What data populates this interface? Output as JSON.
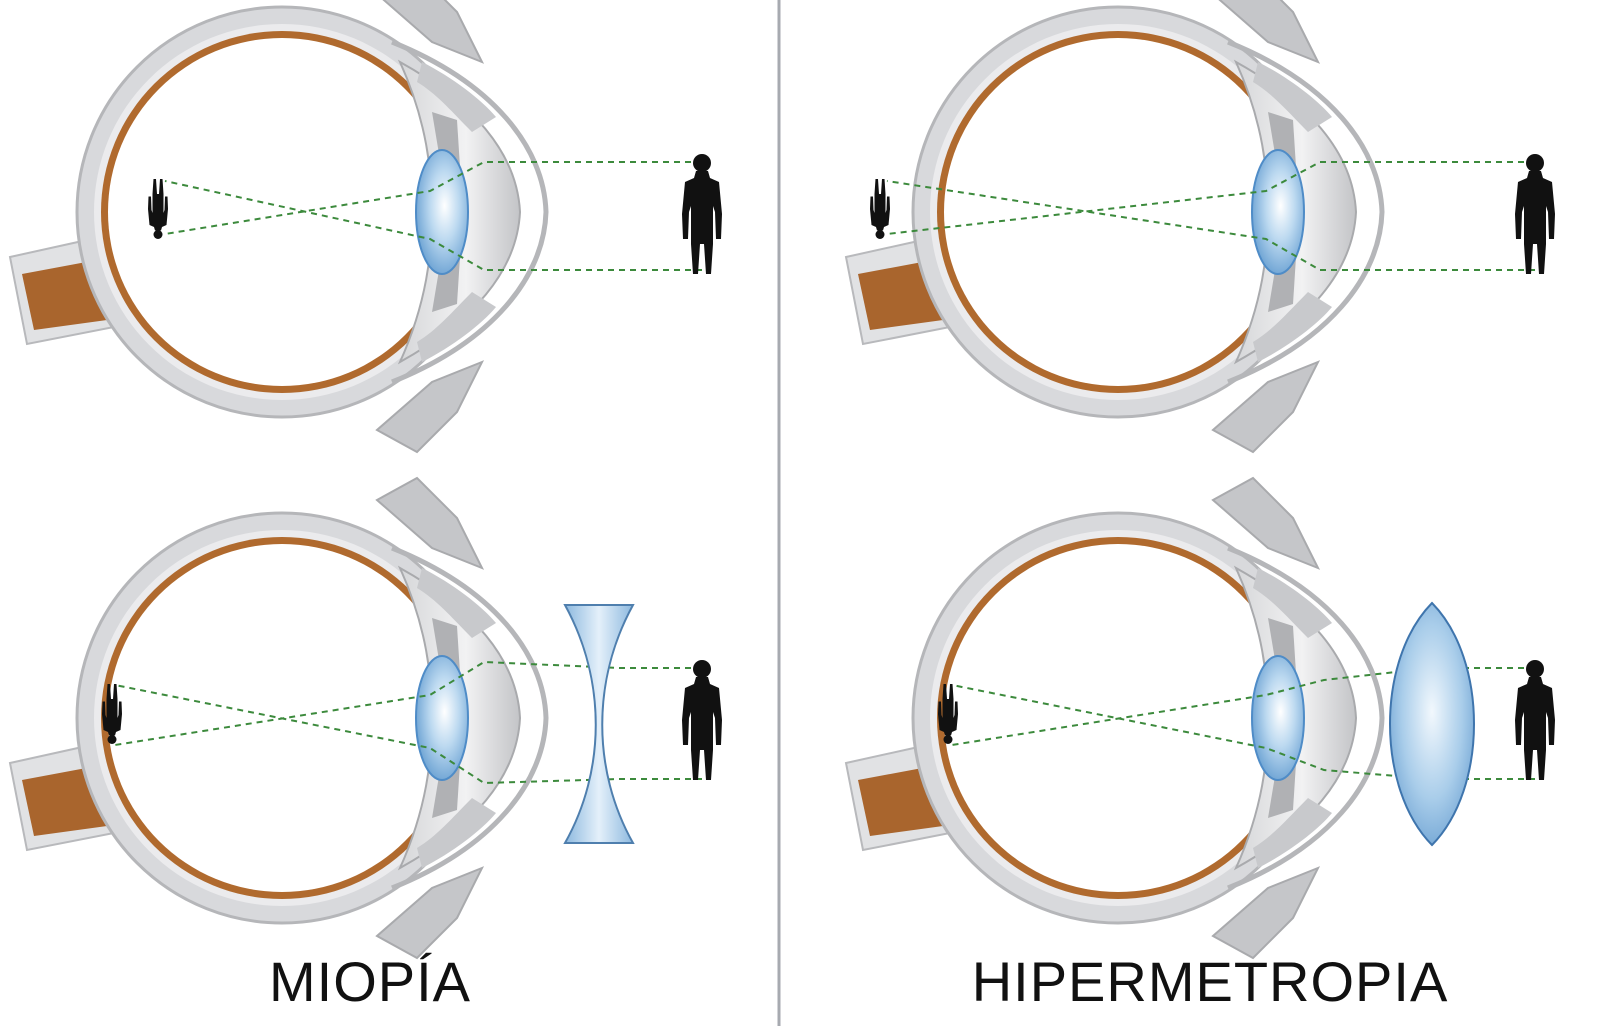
{
  "labels": {
    "left": "MIOPÍA",
    "right": "HIPERMETROPIA"
  },
  "colors": {
    "sclera": "#c9cacd",
    "sclera_light": "#e6e7e9",
    "choroid": "#b06a2e",
    "optic_nerve": "#a9652d",
    "lens": "#6fa9d9",
    "lens_dark": "#3f7fc0",
    "ray": "#3c8a3c",
    "person": "#111111",
    "divider": "#a7aab0"
  },
  "icons": {
    "person": "person-silhouette-icon",
    "concave_lens": "concave-lens-icon",
    "convex_lens": "convex-lens-icon"
  }
}
